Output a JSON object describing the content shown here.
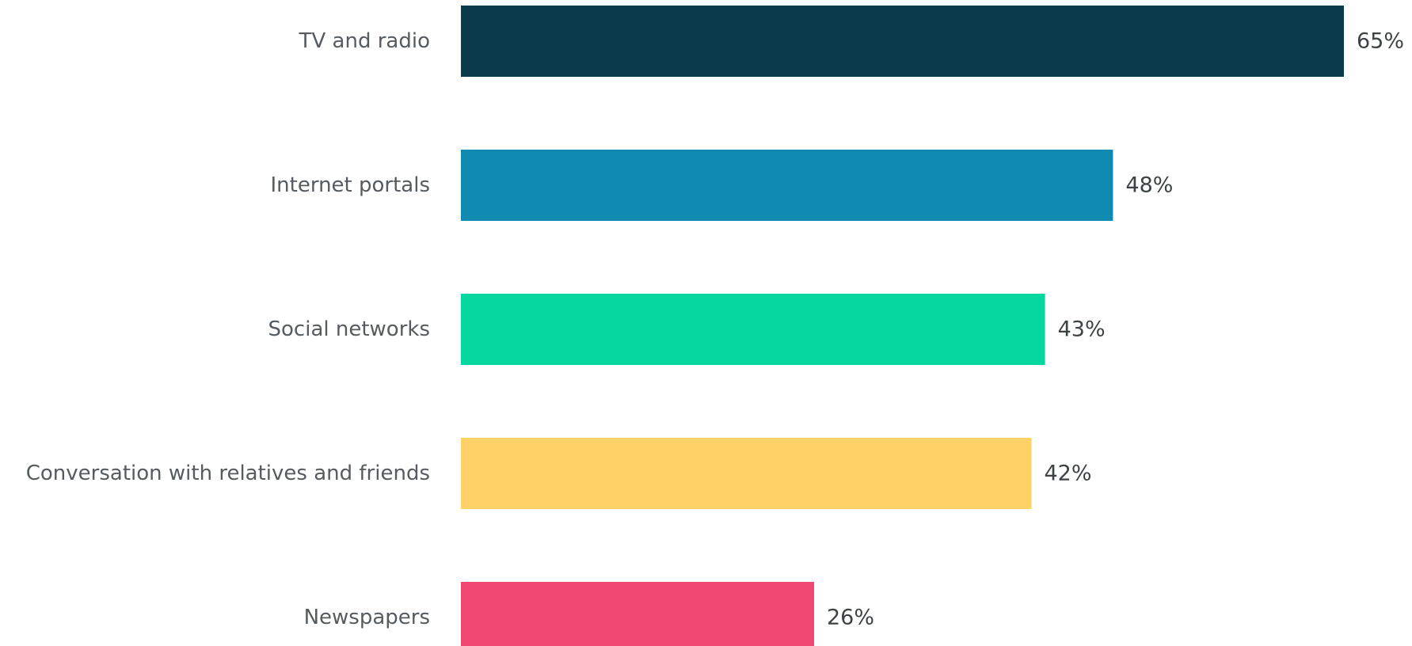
{
  "chart_data": {
    "type": "bar",
    "orientation": "horizontal",
    "title": "",
    "xlabel": "",
    "ylabel": "",
    "categories": [
      "TV and radio",
      "Internet portals",
      "Social networks",
      "Conversation with relatives and friends",
      "Newspapers"
    ],
    "values": [
      65,
      48,
      43,
      42,
      26
    ],
    "value_labels": [
      "65%",
      "48%",
      "43%",
      "42%",
      "26%"
    ],
    "unit": "%",
    "xlim": [
      0,
      65
    ],
    "grid": false,
    "legend": "none",
    "colors": [
      "#0a3b4d",
      "#118ab2",
      "#06d6a0",
      "#ffd166",
      "#ef476f"
    ]
  }
}
